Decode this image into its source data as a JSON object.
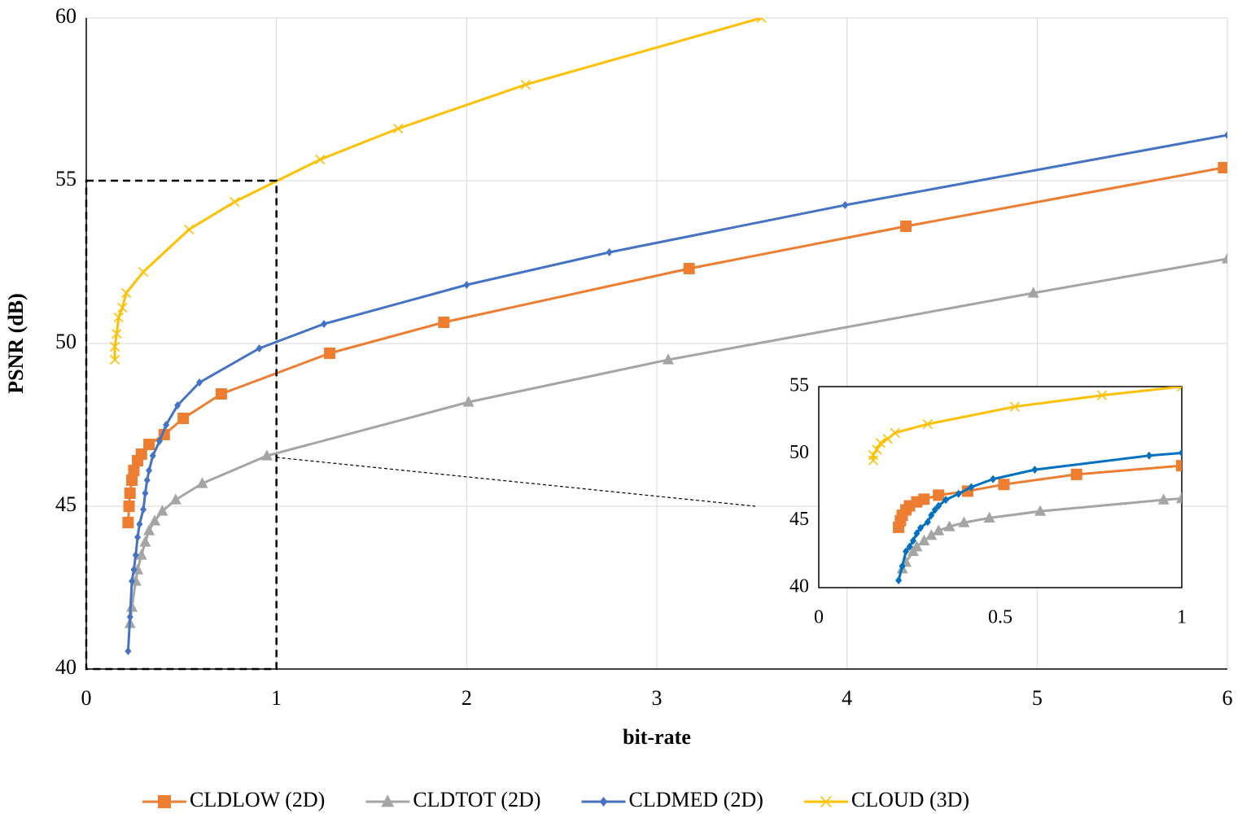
{
  "chart_data": [
    {
      "type": "line",
      "x_label": "bit-rate",
      "y_label": "PSNR (dB)",
      "xlim": [
        0,
        6
      ],
      "ylim": [
        40,
        60
      ],
      "xticks": [
        0,
        1,
        2,
        3,
        4,
        5,
        6
      ],
      "yticks": [
        40,
        45,
        50,
        55,
        60
      ],
      "grid": true,
      "legend": "bottom",
      "series": [
        {
          "name": "CLDLOW (2D)",
          "color": "#ed7d31",
          "marker": "square",
          "x": [
            0.22,
            0.225,
            0.23,
            0.24,
            0.25,
            0.27,
            0.29,
            0.33,
            0.41,
            0.51,
            0.71,
            1.28,
            1.88,
            3.17,
            4.31,
            5.98
          ],
          "values": [
            44.5,
            45.0,
            45.4,
            45.8,
            46.1,
            46.4,
            46.6,
            46.9,
            47.2,
            47.7,
            48.45,
            49.7,
            50.65,
            52.3,
            53.6,
            55.4
          ]
        },
        {
          "name": "CLDTOT (2D)",
          "color": "#a5a5a5",
          "marker": "triangle",
          "x": [
            0.23,
            0.24,
            0.26,
            0.27,
            0.29,
            0.31,
            0.33,
            0.36,
            0.4,
            0.47,
            0.61,
            0.95,
            2.01,
            3.06,
            4.98,
            6
          ],
          "values": [
            41.4,
            41.9,
            42.7,
            43.05,
            43.5,
            43.9,
            44.25,
            44.55,
            44.85,
            45.2,
            45.7,
            46.55,
            48.2,
            49.5,
            51.55,
            52.6
          ]
        },
        {
          "name": "CLDMED (2D)",
          "color": "#4472c4",
          "marker": "diamond",
          "x": [
            0.22,
            0.23,
            0.24,
            0.25,
            0.26,
            0.27,
            0.28,
            0.3,
            0.31,
            0.32,
            0.33,
            0.35,
            0.385,
            0.42,
            0.48,
            0.595,
            0.91,
            1.25,
            2.0,
            2.75,
            3.99,
            6
          ],
          "values": [
            40.55,
            41.6,
            42.7,
            43.05,
            43.5,
            44.05,
            44.45,
            44.9,
            45.4,
            45.8,
            46.1,
            46.55,
            47.0,
            47.5,
            48.1,
            48.8,
            49.85,
            50.6,
            51.8,
            52.8,
            54.25,
            56.4
          ]
        },
        {
          "name": "CLOUD (3D)",
          "color": "#ffc000",
          "marker": "x",
          "x": [
            0.15,
            0.15,
            0.16,
            0.17,
            0.19,
            0.21,
            0.3,
            0.54,
            0.78,
            1.23,
            1.64,
            2.31,
            3.55
          ],
          "values": [
            49.5,
            49.9,
            50.3,
            50.8,
            51.1,
            51.55,
            52.2,
            53.5,
            54.35,
            55.65,
            56.6,
            57.95,
            60
          ]
        }
      ]
    },
    {
      "type": "line",
      "xlim": [
        0,
        1
      ],
      "ylim": [
        40,
        55
      ],
      "xticks": [
        0,
        0.5,
        1
      ],
      "yticks": [
        40,
        45,
        50,
        55
      ],
      "grid": false,
      "series": [
        {
          "color": "#ed7d31",
          "marker": "square",
          "x": [
            0.22,
            0.225,
            0.23,
            0.24,
            0.25,
            0.27,
            0.29,
            0.33,
            0.41,
            0.51,
            0.71,
            1
          ],
          "values": [
            44.5,
            45.0,
            45.4,
            45.8,
            46.1,
            46.4,
            46.6,
            46.9,
            47.2,
            47.7,
            48.45,
            49.1
          ]
        },
        {
          "color": "#a5a5a5",
          "marker": "triangle",
          "x": [
            0.23,
            0.24,
            0.26,
            0.27,
            0.29,
            0.31,
            0.33,
            0.36,
            0.4,
            0.47,
            0.61,
            0.95,
            1
          ],
          "values": [
            41.4,
            41.9,
            42.7,
            43.05,
            43.5,
            43.9,
            44.25,
            44.55,
            44.85,
            45.2,
            45.7,
            46.55,
            46.65
          ]
        },
        {
          "color": "#0070c0",
          "marker": "diamond",
          "x": [
            0.22,
            0.23,
            0.24,
            0.25,
            0.26,
            0.27,
            0.28,
            0.3,
            0.31,
            0.32,
            0.33,
            0.35,
            0.385,
            0.42,
            0.48,
            0.595,
            0.91,
            1
          ],
          "values": [
            40.55,
            41.6,
            42.7,
            43.05,
            43.5,
            44.05,
            44.45,
            44.9,
            45.4,
            45.8,
            46.1,
            46.55,
            47.0,
            47.5,
            48.1,
            48.8,
            49.85,
            50.05
          ]
        },
        {
          "color": "#ffc000",
          "marker": "x",
          "x": [
            0.15,
            0.15,
            0.16,
            0.17,
            0.19,
            0.21,
            0.3,
            0.54,
            0.78,
            1
          ],
          "values": [
            49.5,
            49.9,
            50.3,
            50.8,
            51.1,
            51.55,
            52.2,
            53.5,
            54.35,
            55.0
          ]
        }
      ]
    }
  ]
}
